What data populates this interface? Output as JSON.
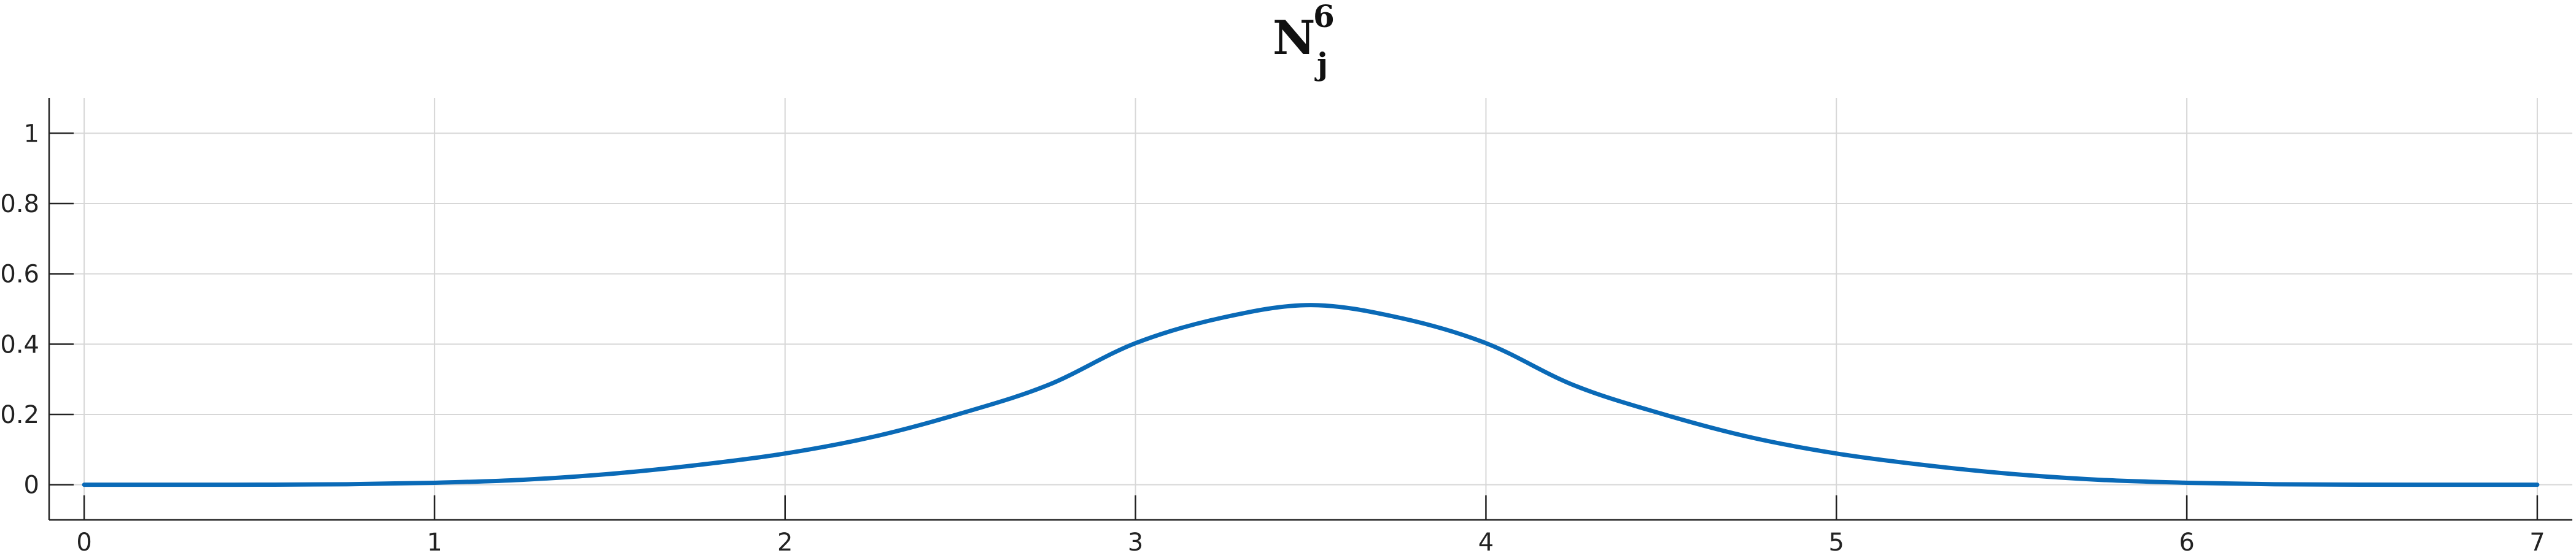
{
  "chart_data": {
    "type": "line",
    "title": "N",
    "title_superscript": "6",
    "title_subscript": "j",
    "xlabel": "",
    "ylabel": "",
    "xlim": [
      -0.1,
      7.1
    ],
    "ylim": [
      -0.1,
      1.1
    ],
    "xticks": [
      0,
      1,
      2,
      3,
      4,
      5,
      6,
      7
    ],
    "xtick_labels": [
      "0",
      "1",
      "2",
      "3",
      "4",
      "5",
      "6",
      "7"
    ],
    "yticks": [
      0,
      0.2,
      0.4,
      0.6,
      0.8,
      1
    ],
    "ytick_labels": [
      "0",
      "0.2",
      "0.4",
      "0.6",
      "0.8",
      "1"
    ],
    "grid": true,
    "legend": false,
    "series": [
      {
        "color": "#0a6ab7",
        "x": [
          0,
          0.25,
          0.5,
          0.75,
          1,
          1.25,
          1.5,
          1.75,
          2,
          2.25,
          2.5,
          2.75,
          3,
          3.25,
          3.5,
          3.75,
          4,
          4.25,
          4.5,
          4.75,
          5,
          5.25,
          5.5,
          5.75,
          6,
          6.25,
          6.5,
          6.75,
          7
        ],
        "y": [
          0,
          1e-05,
          0.0002,
          0.0014,
          0.0056,
          0.0141,
          0.0308,
          0.0561,
          0.0889,
          0.1361,
          0.2024,
          0.2834,
          0.4028,
          0.4758,
          0.5111,
          0.4758,
          0.4028,
          0.2834,
          0.2024,
          0.1361,
          0.0889,
          0.0561,
          0.0308,
          0.0141,
          0.0056,
          0.0014,
          0.0002,
          1e-05,
          0
        ]
      }
    ]
  }
}
